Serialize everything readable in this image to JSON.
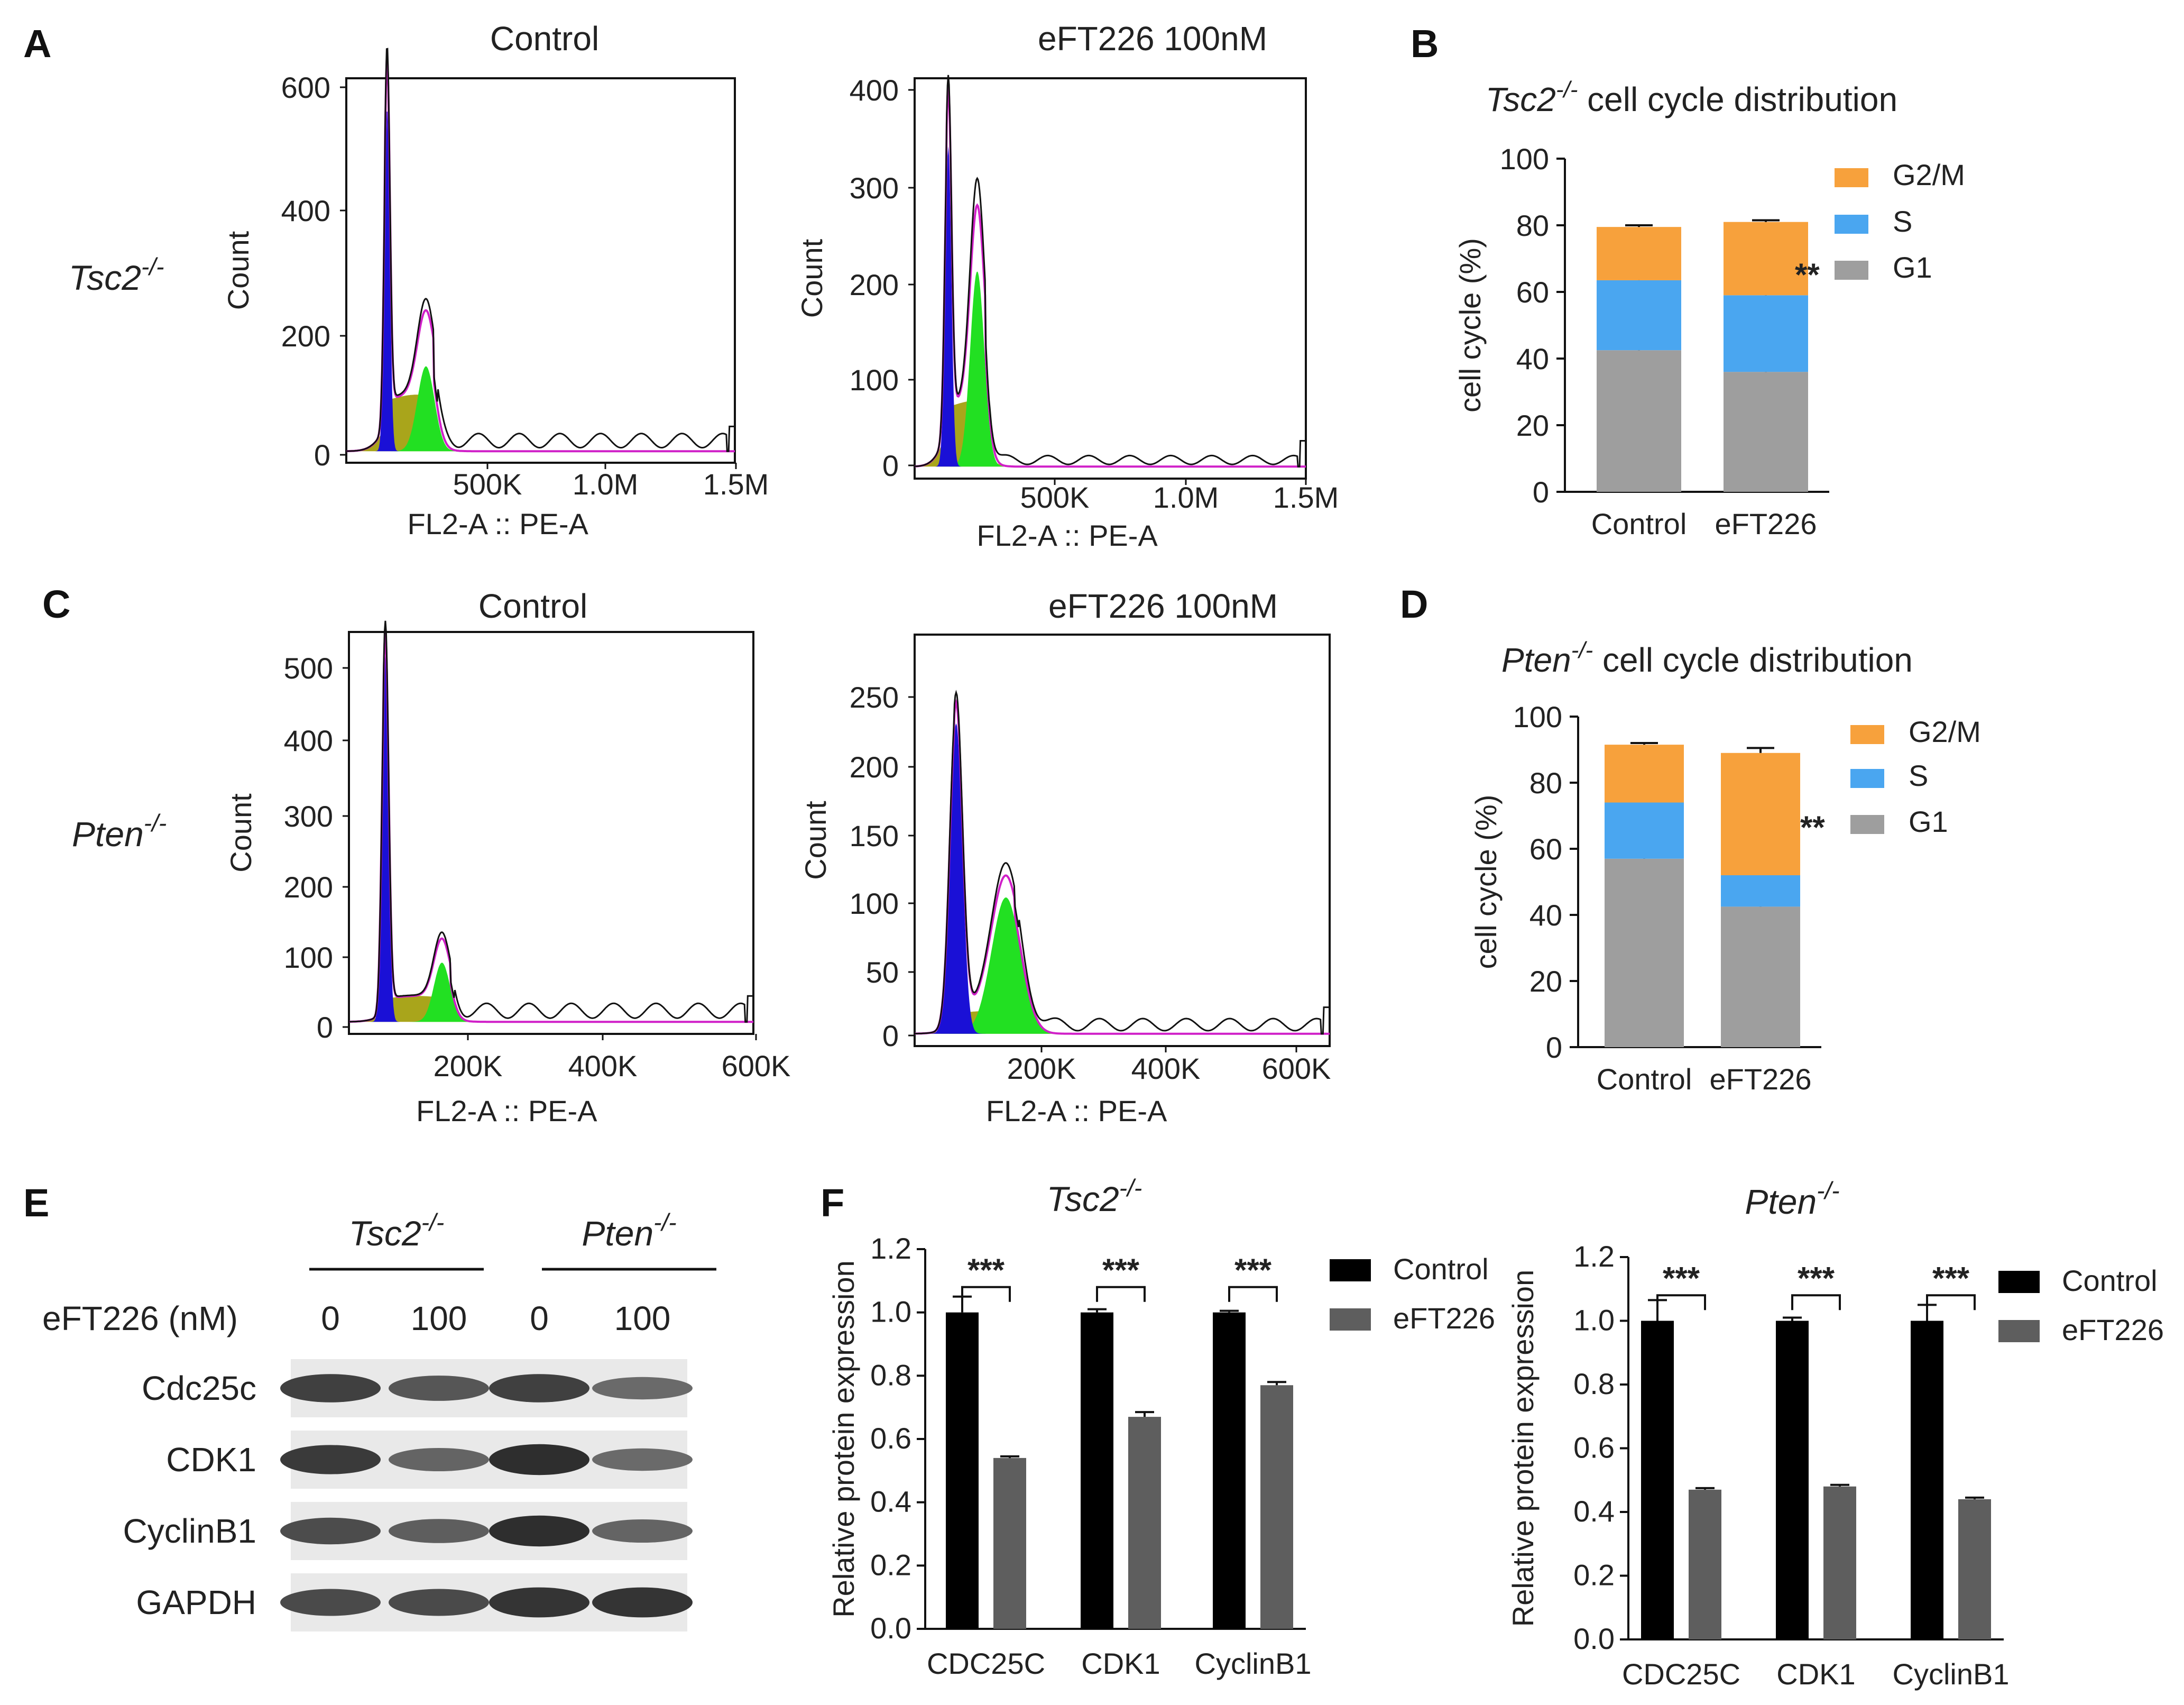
{
  "panels": {
    "a": "A",
    "b": "B",
    "c": "C",
    "d": "D",
    "e": "E",
    "f": "F"
  },
  "colors": {
    "g1_fill": "#1a10d6",
    "s_fill": "#a9a51b",
    "g2m_fill": "#22e022",
    "fit_line": "#d020c8",
    "raw_line": "#111111",
    "stack_g1": "#9e9e9e",
    "stack_s": "#4aa6f0",
    "stack_g2m": "#f7a13c",
    "bar_control": "#000000",
    "bar_eft": "#5e5e5e"
  },
  "panel_a": {
    "gene_prefix": "Tsc2",
    "gene_sup": "-/-",
    "histograms": [
      {
        "title": "Control",
        "ylabel": "Count",
        "xlabel": "FL2-A :: PE-A",
        "yticks": [
          "600",
          "400",
          "200",
          "0"
        ],
        "xticks": [
          "500K",
          "1.0M",
          "1.5M"
        ]
      },
      {
        "title": "eFT226 100nM",
        "ylabel": "Count",
        "xlabel": "FL2-A :: PE-A",
        "yticks": [
          "400",
          "300",
          "200",
          "100",
          "0"
        ],
        "xticks": [
          "500K",
          "1.0M",
          "1.5M"
        ]
      }
    ]
  },
  "panel_c": {
    "gene_prefix": "Pten",
    "gene_sup": "-/-",
    "histograms": [
      {
        "title": "Control",
        "ylabel": "Count",
        "xlabel": "FL2-A :: PE-A",
        "yticks": [
          "500",
          "400",
          "300",
          "200",
          "100",
          "0"
        ],
        "xticks": [
          "200K",
          "400K",
          "600K"
        ]
      },
      {
        "title": "eFT226 100nM",
        "ylabel": "Count",
        "xlabel": "FL2-A :: PE-A",
        "yticks": [
          "250",
          "200",
          "150",
          "100",
          "50",
          "0"
        ],
        "xticks": [
          "200K",
          "400K",
          "600K"
        ]
      }
    ]
  },
  "panel_e": {
    "genes": [
      {
        "prefix": "Tsc2",
        "sup": "-/-"
      },
      {
        "prefix": "Pten",
        "sup": "-/-"
      }
    ],
    "dose_label": "eFT226 (nM)",
    "doses": [
      "0",
      "100",
      "0",
      "100"
    ],
    "proteins": [
      "Cdc25c",
      "CDK1",
      "CyclinB1",
      "GAPDH"
    ],
    "band_intensity": [
      [
        0.8,
        0.62,
        0.8,
        0.45
      ],
      [
        0.85,
        0.5,
        0.95,
        0.45
      ],
      [
        0.7,
        0.55,
        0.95,
        0.5
      ],
      [
        0.72,
        0.72,
        0.9,
        0.9
      ]
    ]
  },
  "chart_data": [
    {
      "id": "B",
      "type": "bar",
      "stacked": true,
      "title_prefix": "Tsc2",
      "title_sup": "-/-",
      "title_suffix": " cell cycle distribution",
      "categories": [
        "Control",
        "eFT226"
      ],
      "series": [
        {
          "name": "G1",
          "values": [
            42.5,
            36.0
          ],
          "errors": [
            0.5,
            1.0
          ]
        },
        {
          "name": "S",
          "values": [
            21.0,
            23.0
          ],
          "errors": [
            1.0,
            0.6
          ]
        },
        {
          "name": "G2/M",
          "values": [
            16.0,
            22.0
          ],
          "errors": [
            0.5,
            0.5
          ]
        }
      ],
      "legend_order": [
        "G2/M",
        "S",
        "G1"
      ],
      "significance": "**",
      "ylabel": "cell cycle (%)",
      "ylim": [
        0,
        100
      ],
      "yticks": [
        0,
        20,
        40,
        60,
        80,
        100
      ]
    },
    {
      "id": "D",
      "type": "bar",
      "stacked": true,
      "title_prefix": "Pten",
      "title_sup": "-/-",
      "title_suffix": " cell cycle distribution",
      "categories": [
        "Control",
        "eFT226"
      ],
      "series": [
        {
          "name": "G1",
          "values": [
            57.0,
            42.5
          ],
          "errors": [
            5.5,
            0.5
          ]
        },
        {
          "name": "S",
          "values": [
            17.0,
            9.5
          ],
          "errors": [
            3.0,
            0.5
          ]
        },
        {
          "name": "G2/M",
          "values": [
            17.5,
            37.0
          ],
          "errors": [
            0.5,
            1.5
          ]
        }
      ],
      "legend_order": [
        "G2/M",
        "S",
        "G1"
      ],
      "significance": "**",
      "ylabel": "cell cycle (%)",
      "ylim": [
        0,
        100
      ],
      "yticks": [
        0,
        20,
        40,
        60,
        80,
        100
      ]
    },
    {
      "id": "F1",
      "type": "bar",
      "title_prefix": "Tsc2",
      "title_sup": "-/-",
      "categories": [
        "CDC25C",
        "CDK1",
        "CyclinB1"
      ],
      "series": [
        {
          "name": "Control",
          "values": [
            1.0,
            1.0,
            1.0
          ],
          "errors": [
            0.05,
            0.01,
            0.005
          ]
        },
        {
          "name": "eFT226",
          "values": [
            0.54,
            0.67,
            0.77
          ],
          "errors": [
            0.005,
            0.015,
            0.01
          ]
        }
      ],
      "significance": [
        "***",
        "***",
        "***"
      ],
      "ylabel": "Relative  protein expression",
      "ylim": [
        0,
        1.2
      ],
      "yticks": [
        "0.0",
        "0.2",
        "0.4",
        "0.6",
        "0.8",
        "1.0",
        "1.2"
      ]
    },
    {
      "id": "F2",
      "type": "bar",
      "title_prefix": "Pten",
      "title_sup": "-/-",
      "categories": [
        "CDC25C",
        "CDK1",
        "CyclinB1"
      ],
      "series": [
        {
          "name": "Control",
          "values": [
            1.0,
            1.0,
            1.0
          ],
          "errors": [
            0.065,
            0.01,
            0.05
          ]
        },
        {
          "name": "eFT226",
          "values": [
            0.47,
            0.48,
            0.44
          ],
          "errors": [
            0.005,
            0.005,
            0.005
          ]
        }
      ],
      "significance": [
        "***",
        "***",
        "***"
      ],
      "ylabel": "Relative  protein expression",
      "ylim": [
        0,
        1.2
      ],
      "yticks": [
        "0.0",
        "0.2",
        "0.4",
        "0.6",
        "0.8",
        "1.0",
        "1.2"
      ]
    }
  ]
}
